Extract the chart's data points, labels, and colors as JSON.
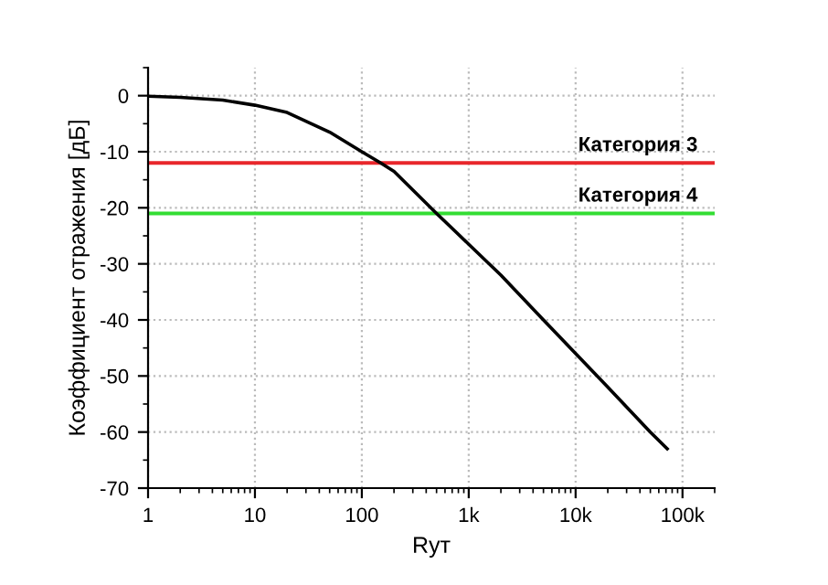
{
  "chart_data": {
    "type": "line",
    "xlabel": "Rут",
    "ylabel": "Коэффициент отражения [дБ]",
    "log": "x",
    "xlim": [
      1,
      200000
    ],
    "ylim": [
      -70,
      5
    ],
    "xticks": [
      1,
      10,
      100,
      {
        "value": 1000,
        "label": "1k"
      },
      {
        "value": 10000,
        "label": "10k"
      },
      {
        "value": 100000,
        "label": "100k"
      }
    ],
    "yticks": [
      -70,
      -60,
      -50,
      -40,
      -30,
      -20,
      -10,
      0
    ],
    "grid": true,
    "marker": "none",
    "line_style": "solid",
    "series": [
      {
        "color": "#000000",
        "x": [
          1,
          2,
          5,
          10,
          20,
          50,
          100,
          150,
          200,
          500,
          1000,
          2000,
          5000,
          10000,
          20000,
          50000,
          72000
        ],
        "values": [
          -0.1,
          -0.3,
          -0.8,
          -1.7,
          -3,
          -6.5,
          -10,
          -12,
          -13.5,
          -21,
          -26.5,
          -32,
          -40,
          -46,
          -52,
          -60,
          -63
        ]
      }
    ],
    "ref_lines": [
      {
        "axis": "y",
        "value": -12,
        "label": "Категория 3",
        "color": "#e8262b"
      },
      {
        "axis": "y",
        "value": -21,
        "label": "Категория 4",
        "color": "#33dd33"
      }
    ]
  }
}
